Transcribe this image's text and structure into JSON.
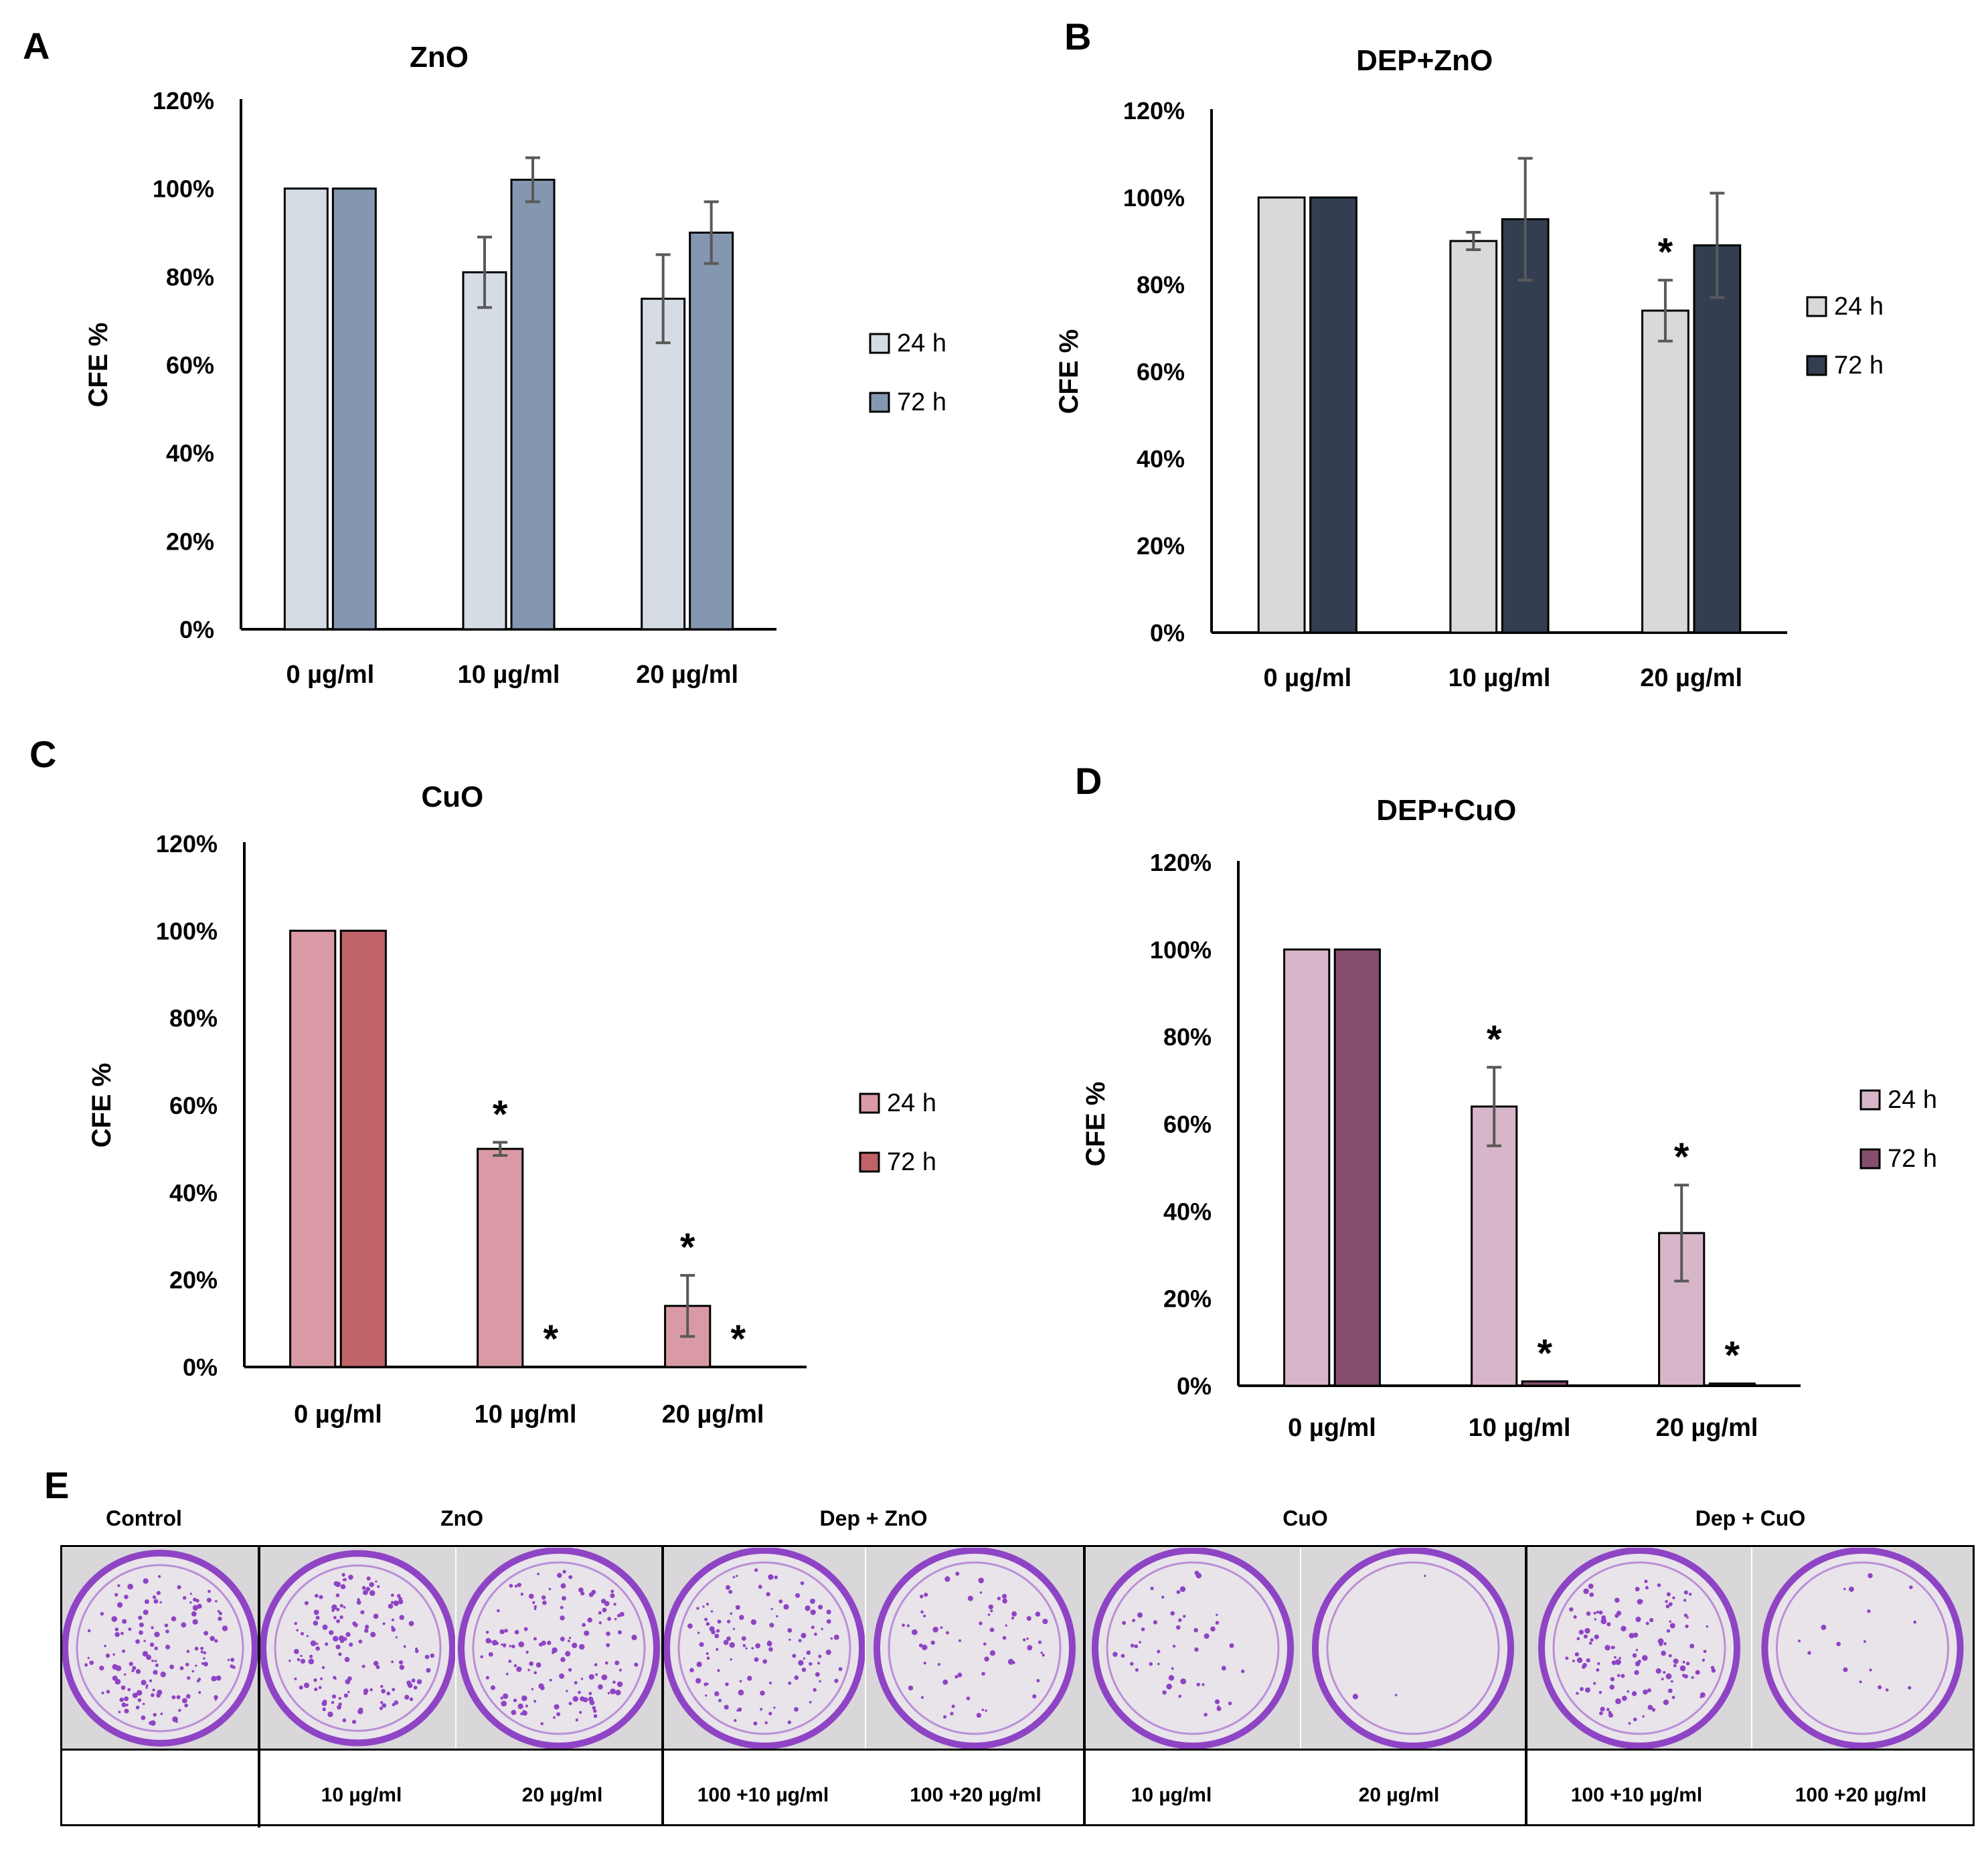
{
  "panels": [
    {
      "letter": "A",
      "chart_data": {
        "type": "bar",
        "title": "ZnO",
        "ylabel": "CFE %",
        "xlabel": "",
        "categories": [
          "0 µg/ml",
          "10 µg/ml",
          "20 µg/ml"
        ],
        "yticks": [
          "0%",
          "20%",
          "40%",
          "60%",
          "80%",
          "100%",
          "120%"
        ],
        "ylim": [
          0,
          120
        ],
        "series": [
          {
            "name": "24 h",
            "color": "#d6dce4",
            "values": [
              100,
              81,
              75
            ],
            "errors": [
              0,
              8,
              10
            ],
            "sig": [
              false,
              false,
              false
            ]
          },
          {
            "name": "72 h",
            "color": "#8497b0",
            "values": [
              100,
              102,
              90
            ],
            "errors": [
              0,
              5,
              7
            ],
            "sig": [
              false,
              false,
              false
            ]
          }
        ]
      }
    },
    {
      "letter": "B",
      "chart_data": {
        "type": "bar",
        "title": "DEP+ZnO",
        "ylabel": "CFE %",
        "xlabel": "",
        "categories": [
          "0 µg/ml",
          "10 µg/ml",
          "20 µg/ml"
        ],
        "yticks": [
          "0%",
          "20%",
          "40%",
          "60%",
          "80%",
          "100%",
          "120%"
        ],
        "ylim": [
          0,
          120
        ],
        "series": [
          {
            "name": "24 h",
            "color": "#d9d9d9",
            "values": [
              100,
              90,
              74
            ],
            "errors": [
              0,
              2,
              7
            ],
            "sig": [
              false,
              false,
              true
            ]
          },
          {
            "name": "72 h",
            "color": "#333f50",
            "values": [
              100,
              95,
              89
            ],
            "errors": [
              0,
              14,
              12
            ],
            "sig": [
              false,
              false,
              false
            ]
          }
        ]
      }
    },
    {
      "letter": "C",
      "chart_data": {
        "type": "bar",
        "title": "CuO",
        "ylabel": "CFE %",
        "xlabel": "",
        "categories": [
          "0 µg/ml",
          "10 µg/ml",
          "20 µg/ml"
        ],
        "yticks": [
          "0%",
          "20%",
          "40%",
          "60%",
          "80%",
          "100%",
          "120%"
        ],
        "ylim": [
          0,
          120
        ],
        "series": [
          {
            "name": "24 h",
            "color": "#da9aa5",
            "values": [
              100,
              50,
              14
            ],
            "errors": [
              0,
              1.5,
              7
            ],
            "sig": [
              false,
              true,
              true
            ]
          },
          {
            "name": "72 h",
            "color": "#c06368",
            "values": [
              100,
              0,
              0
            ],
            "errors": [
              0,
              0,
              0
            ],
            "sig": [
              false,
              true,
              true
            ]
          }
        ]
      }
    },
    {
      "letter": "D",
      "chart_data": {
        "type": "bar",
        "title": "DEP+CuO",
        "ylabel": "CFE %",
        "xlabel": "",
        "categories": [
          "0 µg/ml",
          "10 µg/ml",
          "20 µg/ml"
        ],
        "yticks": [
          "0%",
          "20%",
          "40%",
          "60%",
          "80%",
          "100%",
          "120%"
        ],
        "ylim": [
          0,
          120
        ],
        "series": [
          {
            "name": "24 h",
            "color": "#d8b6c9",
            "values": [
              100,
              64,
              35
            ],
            "errors": [
              0,
              9,
              11
            ],
            "sig": [
              false,
              true,
              true
            ]
          },
          {
            "name": "72 h",
            "color": "#864e6e",
            "values": [
              100,
              1,
              0.5
            ],
            "errors": [
              0,
              0,
              0
            ],
            "sig": [
              false,
              true,
              true
            ]
          }
        ]
      }
    }
  ],
  "sig_marker": "*",
  "panel_e": {
    "letter": "E",
    "group_labels": [
      "Control",
      "ZnO",
      "Dep + ZnO",
      "CuO",
      "Dep + CuO"
    ],
    "concentration_labels": [
      "10 µg/ml",
      "20 µg/ml",
      "100 +10 µg/ml",
      "100 +20 µg/ml",
      "10 µg/ml",
      "20 µg/ml",
      "100 +10 µg/ml",
      "100 +20 µg/ml"
    ],
    "colony_density": [
      1.0,
      1.0,
      0.8,
      0.45,
      0.35,
      0.02,
      0.9,
      0.12
    ],
    "dish_color": "#8e44c4"
  }
}
